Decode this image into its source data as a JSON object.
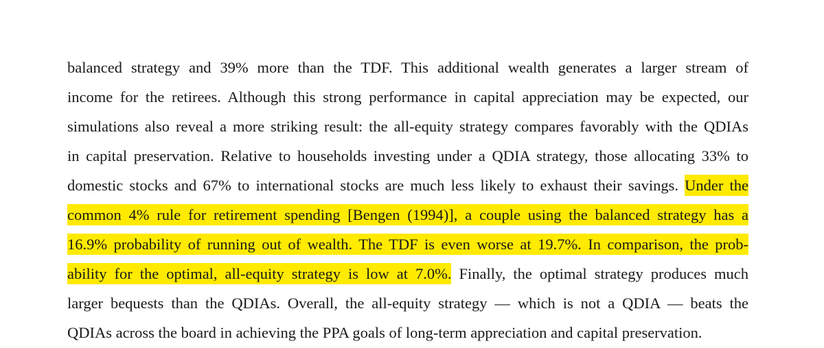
{
  "paragraph": {
    "lines": [
      {
        "pre": "balanced strategy and 39% more than the TDF. This additional wealth generates a larger stream of",
        "hl": "",
        "post": ""
      },
      {
        "pre": "income for the retirees. Although this strong performance in capital appreciation may be expected, our",
        "hl": "",
        "post": ""
      },
      {
        "pre": "simulations also reveal a more striking result: the all-equity strategy compares favorably with the QDIAs",
        "hl": "",
        "post": ""
      },
      {
        "pre": "in capital preservation. Relative to households investing under a QDIA strategy, those allocating 33% to",
        "hl": "",
        "post": ""
      },
      {
        "pre": "domestic stocks and 67% to international stocks are much less likely to exhaust their savings. ",
        "hl": "Under the",
        "post": ""
      },
      {
        "pre": "",
        "hl": "common 4% rule for retirement spending [Bengen (1994)], a couple using the balanced strategy has a",
        "post": ""
      },
      {
        "pre": "",
        "hl": "16.9% probability of running out of wealth. The TDF is even worse at 19.7%. In comparison, the prob-",
        "post": ""
      },
      {
        "pre": "",
        "hl": "ability for the optimal, all-equity strategy is low at 7.0%.",
        "post": " Finally, the optimal strategy produces much"
      },
      {
        "pre": "larger bequests than the QDIAs. Overall, the all-equity strategy — which is not a QDIA — beats the",
        "hl": "",
        "post": ""
      },
      {
        "pre": "QDIAs across the board in achieving the PPA goals of long-term appreciation and capital preservation.",
        "hl": "",
        "post": ""
      }
    ]
  },
  "colors": {
    "highlight": "#ffea00",
    "text": "#1a1a1a"
  }
}
